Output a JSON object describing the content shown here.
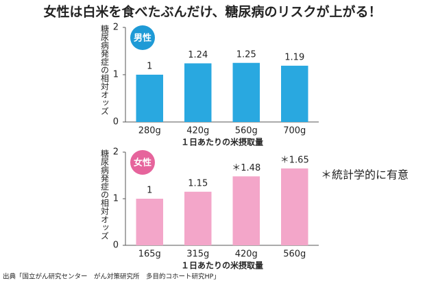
{
  "title": "女性は白米を食べたぶんだけ、糖尿病のリスクが上がる！",
  "note": "＊統計学的に有意",
  "source": "出典「国立がん研究センター　がん対策研究所　多目的コホート研究HP」",
  "chart_data": [
    {
      "type": "bar",
      "badge": "男性",
      "badge_color": "#1e9ad6",
      "y_label": "糖尿病発症の相対オッズ",
      "x_label": "１日あたりの米摂取量",
      "categories": [
        "280g",
        "420g",
        "560g",
        "700g"
      ],
      "values": [
        1,
        1.24,
        1.25,
        1.19
      ],
      "color": "#29a8e0",
      "ylim": [
        0,
        2
      ],
      "yticks": [
        0,
        1,
        2
      ],
      "grid": false
    },
    {
      "type": "bar",
      "badge": "女性",
      "badge_color": "#e6649c",
      "y_label": "糖尿病発症の相対オッズ",
      "x_label": "１日あたりの米摂取量",
      "categories": [
        "165g",
        "315g",
        "420g",
        "560g"
      ],
      "values": [
        1,
        1.15,
        1.48,
        1.65
      ],
      "value_labels": [
        "1",
        "1.15",
        "＊1.48",
        "＊1.65"
      ],
      "color": "#f3a6c9",
      "ylim": [
        0,
        2
      ],
      "yticks": [
        0,
        1,
        2
      ],
      "grid": false
    }
  ]
}
